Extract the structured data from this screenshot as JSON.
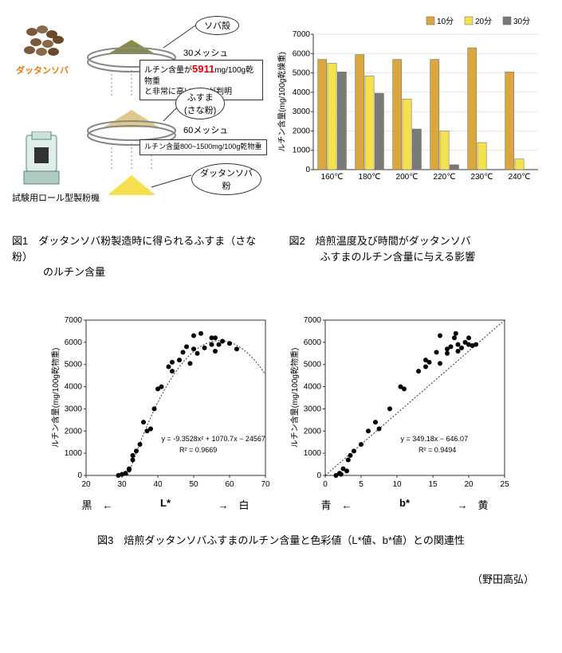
{
  "fig1": {
    "grain_label": "ダッタンソバ",
    "mill_label": "試験用ロール型製粉機",
    "husk_label": "ソバ殻",
    "mesh30_label": "30メッシュ",
    "note1_prefix": "ルチン含量が",
    "note1_value": "5911",
    "note1_unit": "mg/100g乾物重",
    "note1_suffix": "と非常に高いことが判明",
    "bran_label": "ふすま",
    "bran_sublabel": "(さな粉)",
    "mesh60_label": "60メッシュ",
    "note2_text": "ルチン含量800~1500mg/100g乾物重",
    "flour_label": "ダッタンソバ",
    "flour_sublabel": "粉",
    "caption_line1": "図1　ダッタンソバ粉製造時に得られるふすま（さな粉）",
    "caption_line2": "　　　のルチン含量"
  },
  "fig2": {
    "caption_line1": "図2　焙煎温度及び時間がダッタンソバ",
    "caption_line2": "　　　ふすまのルチン含量に与える影響",
    "legend": [
      "10分",
      "20分",
      "30分"
    ],
    "legend_colors": [
      "#d9a73e",
      "#f5e050",
      "#7a7a7a"
    ],
    "ylabel": "ルチン含量(mg/100g乾燥重)",
    "ylim": [
      0,
      7000
    ],
    "ytick_step": 1000,
    "categories": [
      "160℃",
      "180℃",
      "200℃",
      "220℃",
      "230℃",
      "240℃"
    ],
    "series": [
      [
        5700,
        5950,
        5700,
        5700,
        6300,
        5050
      ],
      [
        5500,
        4850,
        3650,
        2000,
        1400,
        550
      ],
      [
        5050,
        3950,
        2100,
        250,
        0,
        0
      ]
    ],
    "bg_color": "#ffffff",
    "axis_color": "#333333",
    "grid_color": "#cccccc",
    "font_size": 10
  },
  "fig3": {
    "caption": "図3　焙煎ダッタンソバふすまのルチン含量と色彩値（L*値、b*値）との関連性",
    "ylabel": "ルチン含量(mg/100g乾物重)",
    "ylim": [
      0,
      7000
    ],
    "ytick_step": 1000,
    "marker_color": "#000000",
    "curve_color": "#333333",
    "plot_a": {
      "xlim": [
        20,
        70
      ],
      "xtick_step": 10,
      "xaxis_left_label": "黒　←",
      "xaxis_center": "L*",
      "xaxis_right_label": "→　白",
      "equation": "y = -9.3528x² + 1070.7x − 24567",
      "r2": "R² = 0.9669",
      "points": [
        [
          29,
          0
        ],
        [
          30,
          50
        ],
        [
          31,
          100
        ],
        [
          32,
          300
        ],
        [
          32,
          250
        ],
        [
          33,
          700
        ],
        [
          33,
          900
        ],
        [
          34,
          1100
        ],
        [
          35,
          1400
        ],
        [
          36,
          2400
        ],
        [
          37,
          2000
        ],
        [
          38,
          2100
        ],
        [
          39,
          3000
        ],
        [
          41,
          4000
        ],
        [
          40,
          3900
        ],
        [
          43,
          4900
        ],
        [
          44,
          5100
        ],
        [
          44,
          4700
        ],
        [
          46,
          5200
        ],
        [
          47,
          5550
        ],
        [
          48,
          5800
        ],
        [
          49,
          5050
        ],
        [
          50,
          5700
        ],
        [
          50,
          6300
        ],
        [
          51,
          5500
        ],
        [
          52,
          6400
        ],
        [
          53,
          5750
        ],
        [
          55,
          6200
        ],
        [
          55,
          5900
        ],
        [
          56,
          6200
        ],
        [
          57,
          5900
        ],
        [
          56,
          5600
        ],
        [
          58,
          6050
        ],
        [
          60,
          5950
        ],
        [
          62,
          5700
        ]
      ],
      "curve_poly": [
        -9.3528,
        1070.7,
        -24567
      ]
    },
    "plot_b": {
      "xlim": [
        0,
        25
      ],
      "xtick_step": 5,
      "xaxis_left_label": "青　←",
      "xaxis_center": "b*",
      "xaxis_right_label": "→　黄",
      "equation": "y = 349.18x − 646.07",
      "r2": "R² = 0.9494",
      "points": [
        [
          1.5,
          0
        ],
        [
          2,
          100
        ],
        [
          2.2,
          50
        ],
        [
          2.5,
          300
        ],
        [
          3,
          200
        ],
        [
          3.2,
          700
        ],
        [
          3.5,
          900
        ],
        [
          4,
          1100
        ],
        [
          5,
          1400
        ],
        [
          6,
          2000
        ],
        [
          7,
          2400
        ],
        [
          7.5,
          2100
        ],
        [
          9,
          3000
        ],
        [
          11,
          3900
        ],
        [
          10.5,
          4000
        ],
        [
          13,
          4700
        ],
        [
          14,
          4900
        ],
        [
          14.5,
          5100
        ],
        [
          14,
          5200
        ],
        [
          15.5,
          5550
        ],
        [
          16,
          6300
        ],
        [
          16,
          5050
        ],
        [
          17,
          5500
        ],
        [
          17.5,
          5800
        ],
        [
          17,
          5700
        ],
        [
          18,
          6200
        ],
        [
          18.5,
          5900
        ],
        [
          18.2,
          6400
        ],
        [
          19,
          5750
        ],
        [
          20,
          6200
        ],
        [
          19.5,
          6000
        ],
        [
          20,
          5900
        ],
        [
          20.5,
          5850
        ],
        [
          21,
          5900
        ],
        [
          18.5,
          5600
        ]
      ],
      "line_coef": [
        349.18,
        -646.07
      ]
    }
  },
  "author": "（野田高弘）"
}
